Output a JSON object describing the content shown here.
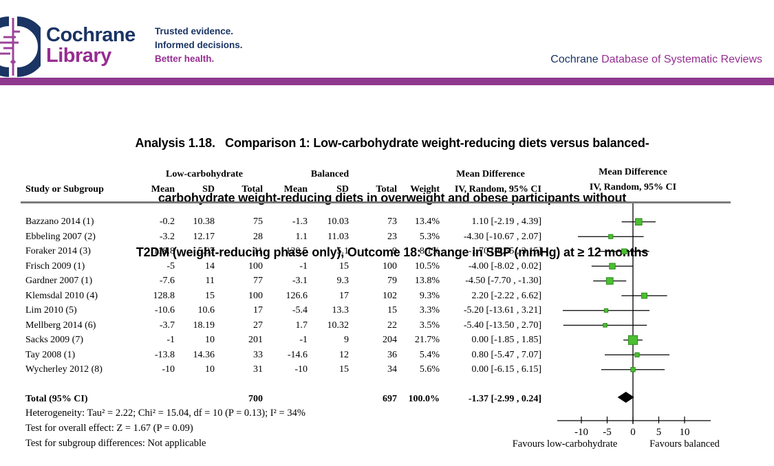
{
  "brand": {
    "navy": "#1a3464",
    "purple": "#962d91",
    "bar": "#8e398e",
    "logo_line": "#9c449a"
  },
  "header": {
    "brand_line1": "Cochrane",
    "brand_line2": "Library",
    "tagline1": "Trusted evidence.",
    "tagline2": "Informed decisions.",
    "tagline3": "Better health.",
    "journal_prefix": "Cochrane",
    "journal_suffix": " Database of Systematic Reviews"
  },
  "title": {
    "line1": "Analysis 1.18.   Comparison 1: Low-carbohydrate weight-reducing diets versus balanced-",
    "line2": "carbohydrate weight-reducing diets in overweight and obese participants without",
    "line3": "T2DM (weight-reducing phase only), Outcome 18: Change in SBP (mmHg) at ≥ 12 months"
  },
  "table": {
    "group_headers": {
      "low_carb": "Low-carbohydrate",
      "balanced": "Balanced",
      "mean_diff": "Mean Difference",
      "plot_mean_diff": "Mean Difference"
    },
    "col_headers": {
      "study": "Study or Subgroup",
      "mean1": "Mean",
      "sd1": "SD",
      "total1": "Total",
      "mean2": "Mean",
      "sd2": "SD",
      "total2": "Total",
      "weight": "Weight",
      "ci": "IV, Random, 95% CI",
      "plot_ci": "IV, Random, 95% CI"
    },
    "rows": [
      {
        "study": "Bazzano 2014 (1)",
        "mean1": "-0.2",
        "sd1": "10.38",
        "total1": "75",
        "mean2": "-1.3",
        "sd2": "10.03",
        "total2": "73",
        "weight": "13.4%",
        "ci": "1.10 [-2.19 , 4.39]"
      },
      {
        "study": "Ebbeling 2007 (2)",
        "mean1": "-3.2",
        "sd1": "12.17",
        "total1": "28",
        "mean2": "1.1",
        "sd2": "11.03",
        "total2": "23",
        "weight": "5.3%",
        "ci": "-4.30 [-10.67 , 2.07]"
      },
      {
        "study": "Foraker 2014 (3)",
        "mean1": "118.8",
        "sd1": "5.97",
        "total1": "11",
        "mean2": "120.5",
        "sd2": "5.1",
        "total2": "9",
        "weight": "8.1%",
        "ci": "-1.70 [-6.55 , 3.15]"
      },
      {
        "study": "Frisch 2009 (1)",
        "mean1": "-5",
        "sd1": "14",
        "total1": "100",
        "mean2": "-1",
        "sd2": "15",
        "total2": "100",
        "weight": "10.5%",
        "ci": "-4.00 [-8.02 , 0.02]"
      },
      {
        "study": "Gardner 2007 (1)",
        "mean1": "-7.6",
        "sd1": "11",
        "total1": "77",
        "mean2": "-3.1",
        "sd2": "9.3",
        "total2": "79",
        "weight": "13.8%",
        "ci": "-4.50 [-7.70 , -1.30]"
      },
      {
        "study": "Klemsdal 2010 (4)",
        "mean1": "128.8",
        "sd1": "15",
        "total1": "100",
        "mean2": "126.6",
        "sd2": "17",
        "total2": "102",
        "weight": "9.3%",
        "ci": "2.20 [-2.22 , 6.62]"
      },
      {
        "study": "Lim 2010 (5)",
        "mean1": "-10.6",
        "sd1": "10.6",
        "total1": "17",
        "mean2": "-5.4",
        "sd2": "13.3",
        "total2": "15",
        "weight": "3.3%",
        "ci": "-5.20 [-13.61 , 3.21]"
      },
      {
        "study": "Mellberg 2014 (6)",
        "mean1": "-3.7",
        "sd1": "18.19",
        "total1": "27",
        "mean2": "1.7",
        "sd2": "10.32",
        "total2": "22",
        "weight": "3.5%",
        "ci": "-5.40 [-13.50 , 2.70]"
      },
      {
        "study": "Sacks 2009 (7)",
        "mean1": "-1",
        "sd1": "10",
        "total1": "201",
        "mean2": "-1",
        "sd2": "9",
        "total2": "204",
        "weight": "21.7%",
        "ci": "0.00 [-1.85 , 1.85]"
      },
      {
        "study": "Tay 2008 (1)",
        "mean1": "-13.8",
        "sd1": "14.36",
        "total1": "33",
        "mean2": "-14.6",
        "sd2": "12",
        "total2": "36",
        "weight": "5.4%",
        "ci": "0.80 [-5.47 , 7.07]"
      },
      {
        "study": "Wycherley 2012 (8)",
        "mean1": "-10",
        "sd1": "10",
        "total1": "31",
        "mean2": "-10",
        "sd2": "15",
        "total2": "34",
        "weight": "5.6%",
        "ci": "0.00 [-6.15 , 6.15]"
      }
    ],
    "total_row": {
      "label": "Total (95% CI)",
      "total1": "700",
      "total2": "697",
      "weight": "100.0%",
      "ci": "-1.37 [-2.99 , 0.24]"
    }
  },
  "footnotes": {
    "heterogeneity": "Heterogeneity: Tau² = 2.22; Chi² = 15.04, df = 10 (P = 0.13); I² = 34%",
    "overall": "Test for overall effect: Z = 1.67 (P = 0.09)",
    "subgroup": "Test for subgroup differences: Not applicable"
  },
  "chart_data": {
    "type": "forest",
    "title": "Mean Difference",
    "subtitle": "IV, Random, 95% CI",
    "xlim": [
      -15,
      15
    ],
    "ticks": [
      -10,
      -5,
      0,
      5,
      10
    ],
    "favours_left": "Favours low-carbohydrate",
    "favours_right": "Favours balanced",
    "marker_fill": "#4bbf31",
    "marker_stroke": "#2e8a1e",
    "line_color": "#000000",
    "studies": [
      {
        "name": "Bazzano 2014",
        "md": 1.1,
        "lo": -2.19,
        "hi": 4.39,
        "weight": 13.4
      },
      {
        "name": "Ebbeling 2007",
        "md": -4.3,
        "lo": -10.67,
        "hi": 2.07,
        "weight": 5.3
      },
      {
        "name": "Foraker 2014",
        "md": -1.7,
        "lo": -6.55,
        "hi": 3.15,
        "weight": 8.1
      },
      {
        "name": "Frisch 2009",
        "md": -4.0,
        "lo": -8.02,
        "hi": 0.02,
        "weight": 10.5
      },
      {
        "name": "Gardner 2007",
        "md": -4.5,
        "lo": -7.7,
        "hi": -1.3,
        "weight": 13.8
      },
      {
        "name": "Klemsdal 2010",
        "md": 2.2,
        "lo": -2.22,
        "hi": 6.62,
        "weight": 9.3
      },
      {
        "name": "Lim 2010",
        "md": -5.2,
        "lo": -13.61,
        "hi": 3.21,
        "weight": 3.3
      },
      {
        "name": "Mellberg 2014",
        "md": -5.4,
        "lo": -13.5,
        "hi": 2.7,
        "weight": 3.5
      },
      {
        "name": "Sacks 2009",
        "md": 0.0,
        "lo": -1.85,
        "hi": 1.85,
        "weight": 21.7
      },
      {
        "name": "Tay 2008",
        "md": 0.8,
        "lo": -5.47,
        "hi": 7.07,
        "weight": 5.4
      },
      {
        "name": "Wycherley 2012",
        "md": 0.0,
        "lo": -6.15,
        "hi": 6.15,
        "weight": 5.6
      }
    ],
    "total": {
      "md": -1.37,
      "lo": -2.99,
      "hi": 0.24
    }
  }
}
